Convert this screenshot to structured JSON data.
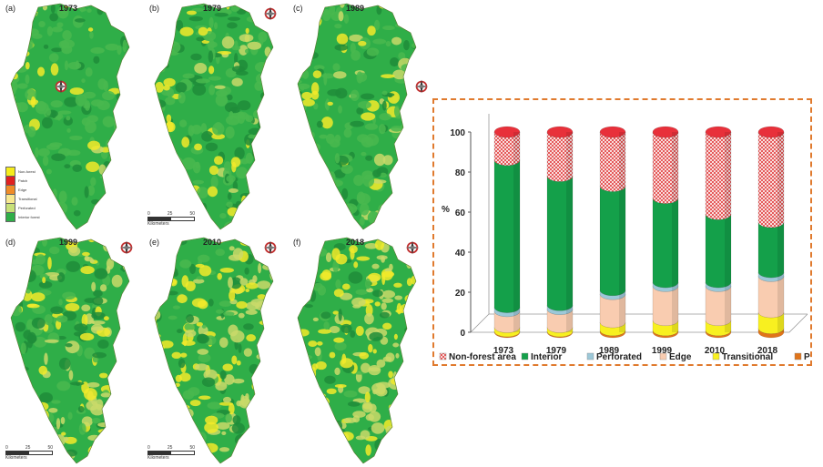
{
  "maps": {
    "panels": [
      {
        "label": "(a)",
        "year": "1973"
      },
      {
        "label": "(b)",
        "year": "1979"
      },
      {
        "label": "(c)",
        "year": "1989"
      },
      {
        "label": "(d)",
        "year": "1999"
      },
      {
        "label": "(e)",
        "year": "2010"
      },
      {
        "label": "(f)",
        "year": "2018"
      }
    ],
    "legend": [
      "Non-forest",
      "Patch",
      "Edge",
      "Transitional",
      "Perforated",
      "Interior forest"
    ],
    "legend_colors": [
      "#f6ec1c",
      "#e02020",
      "#f08c28",
      "#f8e890",
      "#c8e078",
      "#2fae48"
    ],
    "scale_label": "Kilometers",
    "scale_ticks": [
      "0",
      "25",
      "50"
    ]
  },
  "chart_data": {
    "type": "bar",
    "stacked": true,
    "categories": [
      "1973",
      "1979",
      "1989",
      "1999",
      "2010",
      "2018"
    ],
    "series": [
      {
        "name": "Patch",
        "color": "#e0741a",
        "values": [
          0.5,
          0.5,
          1,
          1,
          1,
          2
        ]
      },
      {
        "name": "Transitional",
        "color": "#f8f020",
        "values": [
          2,
          2,
          4,
          5,
          5,
          8
        ]
      },
      {
        "name": "Edge",
        "color": "#f8b890",
        "values": [
          8,
          9,
          14,
          17,
          17,
          18
        ]
      },
      {
        "name": "Perforated",
        "color": "#9cc8d8",
        "values": [
          2,
          2,
          2,
          2,
          2,
          2
        ]
      },
      {
        "name": "Interior",
        "color": "#14a04a",
        "values": [
          73.5,
          64.5,
          52,
          42,
          34,
          25
        ]
      },
      {
        "name": "Non-forest area",
        "color": "#f4a4a4",
        "values": [
          14,
          22,
          27,
          33,
          41,
          45
        ]
      }
    ],
    "ylabel": "%",
    "ylim": [
      0,
      100
    ],
    "yticks": [
      "0",
      "20",
      "40",
      "60",
      "80",
      "100"
    ],
    "legend_position": "bottom"
  }
}
